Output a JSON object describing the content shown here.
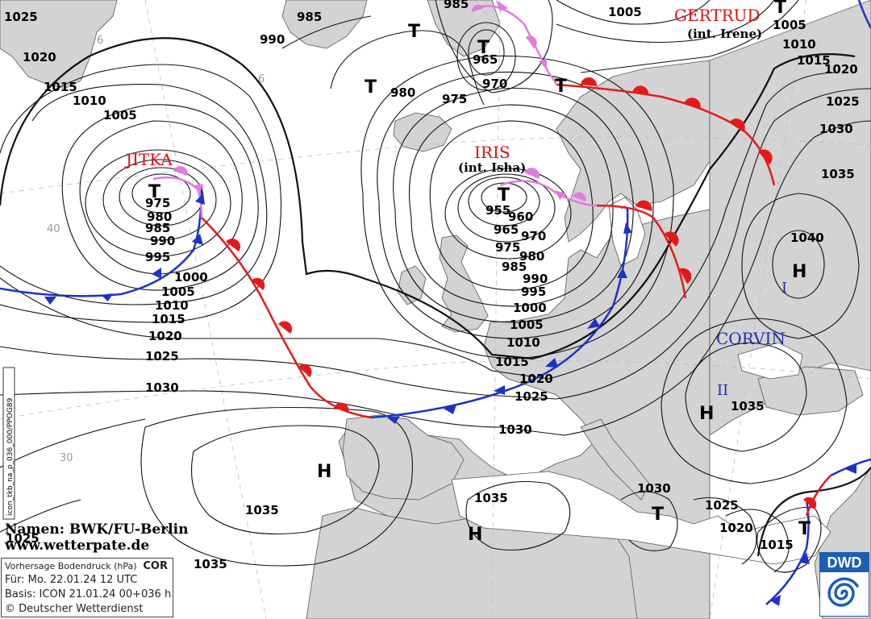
{
  "isobars": {
    "labels": [
      "1025",
      "1020",
      "1015",
      "1010",
      "1005",
      "985",
      "990",
      "985",
      "1005",
      "1005",
      "1010",
      "1015",
      "1020",
      "1025",
      "1030",
      "1035",
      "1040",
      "975",
      "980",
      "985",
      "990",
      "995",
      "1000",
      "1005",
      "1010",
      "1015",
      "1020",
      "1025",
      "1030",
      "955",
      "960",
      "965",
      "970",
      "975",
      "980",
      "985",
      "990",
      "995",
      "1000",
      "1005",
      "1010",
      "1015",
      "1020",
      "1025",
      "1030",
      "980",
      "975",
      "965",
      "970",
      "1035",
      "1035",
      "1035",
      "1030",
      "1025",
      "1020",
      "1015",
      "1035",
      "1030",
      "1025"
    ]
  },
  "centers": {
    "letters": [
      "T",
      "T",
      "T",
      "T",
      "T",
      "T",
      "H",
      "H",
      "H",
      "H",
      "T",
      "T"
    ]
  },
  "storms": {
    "jitka": "JITKA",
    "iris": "IRIS",
    "iris_sub": "(int. Isha)",
    "gertrud": "GERTRUD",
    "gertrud_sub": "(int. Irene)",
    "corvin": "CORVIN",
    "corvin_i": "I",
    "corvin_ii": "II"
  },
  "latitudes": [
    "40",
    "30",
    "6",
    "6"
  ],
  "credits": {
    "names": "Namen: BWK/FU-Berlin",
    "site": "www.wetterpate.de",
    "vertical_id": "icon_tkb_na_p_036_000/PPOG89"
  },
  "info_box": {
    "title": "Vorhersage Bodendruck (hPa)",
    "cor": "COR",
    "valid": "Für:  Mo. 22.01.24  12 UTC",
    "base": "Basis: ICON  21.01.24 00+036 h",
    "copyright": "© Deutscher Wetterdienst"
  },
  "logo": {
    "text": "DWD"
  },
  "colors": {
    "land": "#d3d3d3",
    "sea": "#ffffff",
    "warm_front": "#e41a1a",
    "cold_front": "#1a32c8",
    "occlusion": "#e07be0",
    "storm_name": "#dd1111",
    "high_name": "#1a2fb0"
  }
}
